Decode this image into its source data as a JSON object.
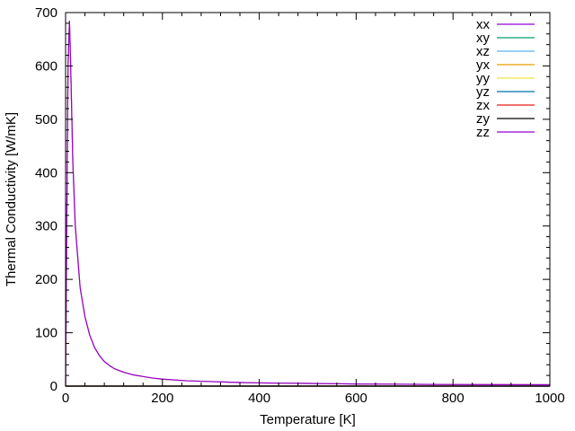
{
  "chart_data": {
    "type": "line",
    "xlabel": "Temperature [K]",
    "ylabel": "Thermal Conductivity [W/mK]",
    "xlim": [
      0,
      1000
    ],
    "ylim": [
      0,
      700
    ],
    "xticks": [
      0,
      200,
      400,
      600,
      800,
      1000
    ],
    "yticks": [
      0,
      100,
      200,
      300,
      400,
      500,
      600,
      700
    ],
    "grid": false,
    "legend_position": "top-right",
    "x": [
      0,
      2,
      5,
      8,
      10,
      15,
      20,
      30,
      40,
      50,
      60,
      70,
      80,
      90,
      100,
      120,
      140,
      160,
      180,
      200,
      250,
      300,
      350,
      400,
      500,
      600,
      700,
      800,
      900,
      1000
    ],
    "series": [
      {
        "name": "xx",
        "color": "#9400d3",
        "values": [
          0,
          250,
          600,
          684,
          620,
          420,
          300,
          185,
          130,
          95,
          72,
          57,
          46,
          39,
          33,
          26,
          21,
          18,
          15,
          13,
          10,
          8.5,
          7,
          6,
          5,
          4,
          3.5,
          3,
          2.8,
          2.5
        ]
      },
      {
        "name": "xy",
        "color": "#009e73",
        "values": [
          0,
          0,
          0,
          0,
          0,
          0,
          0,
          0,
          0,
          0,
          0,
          0,
          0,
          0,
          0,
          0,
          0,
          0,
          0,
          0,
          0,
          0,
          0,
          0,
          0,
          0,
          0,
          0,
          0,
          0
        ]
      },
      {
        "name": "xz",
        "color": "#56b4e9",
        "values": [
          0,
          0,
          0,
          0,
          0,
          0,
          0,
          0,
          0,
          0,
          0,
          0,
          0,
          0,
          0,
          0,
          0,
          0,
          0,
          0,
          0,
          0,
          0,
          0,
          0,
          0,
          0,
          0,
          0,
          0
        ]
      },
      {
        "name": "yx",
        "color": "#e69f00",
        "values": [
          0,
          0,
          0,
          0,
          0,
          0,
          0,
          0,
          0,
          0,
          0,
          0,
          0,
          0,
          0,
          0,
          0,
          0,
          0,
          0,
          0,
          0,
          0,
          0,
          0,
          0,
          0,
          0,
          0,
          0
        ]
      },
      {
        "name": "yy",
        "color": "#f0e442",
        "values": [
          0,
          250,
          600,
          684,
          620,
          420,
          300,
          185,
          130,
          95,
          72,
          57,
          46,
          39,
          33,
          26,
          21,
          18,
          15,
          13,
          10,
          8.5,
          7,
          6,
          5,
          4,
          3.5,
          3,
          2.8,
          2.5
        ]
      },
      {
        "name": "yz",
        "color": "#0072b2",
        "values": [
          0,
          0,
          0,
          0,
          0,
          0,
          0,
          0,
          0,
          0,
          0,
          0,
          0,
          0,
          0,
          0,
          0,
          0,
          0,
          0,
          0,
          0,
          0,
          0,
          0,
          0,
          0,
          0,
          0,
          0
        ]
      },
      {
        "name": "zx",
        "color": "#e51e10",
        "values": [
          0,
          0,
          0,
          0,
          0,
          0,
          0,
          0,
          0,
          0,
          0,
          0,
          0,
          0,
          0,
          0,
          0,
          0,
          0,
          0,
          0,
          0,
          0,
          0,
          0,
          0,
          0,
          0,
          0,
          0
        ]
      },
      {
        "name": "zy",
        "color": "#000000",
        "values": [
          0,
          0,
          0,
          0,
          0,
          0,
          0,
          0,
          0,
          0,
          0,
          0,
          0,
          0,
          0,
          0,
          0,
          0,
          0,
          0,
          0,
          0,
          0,
          0,
          0,
          0,
          0,
          0,
          0,
          0
        ]
      },
      {
        "name": "zz",
        "color": "#9400d3",
        "values": [
          0,
          250,
          600,
          684,
          620,
          420,
          300,
          185,
          130,
          95,
          72,
          57,
          46,
          39,
          33,
          26,
          21,
          18,
          15,
          13,
          10,
          8.5,
          7,
          6,
          5,
          4,
          3.5,
          3,
          2.8,
          2.5
        ]
      }
    ]
  }
}
